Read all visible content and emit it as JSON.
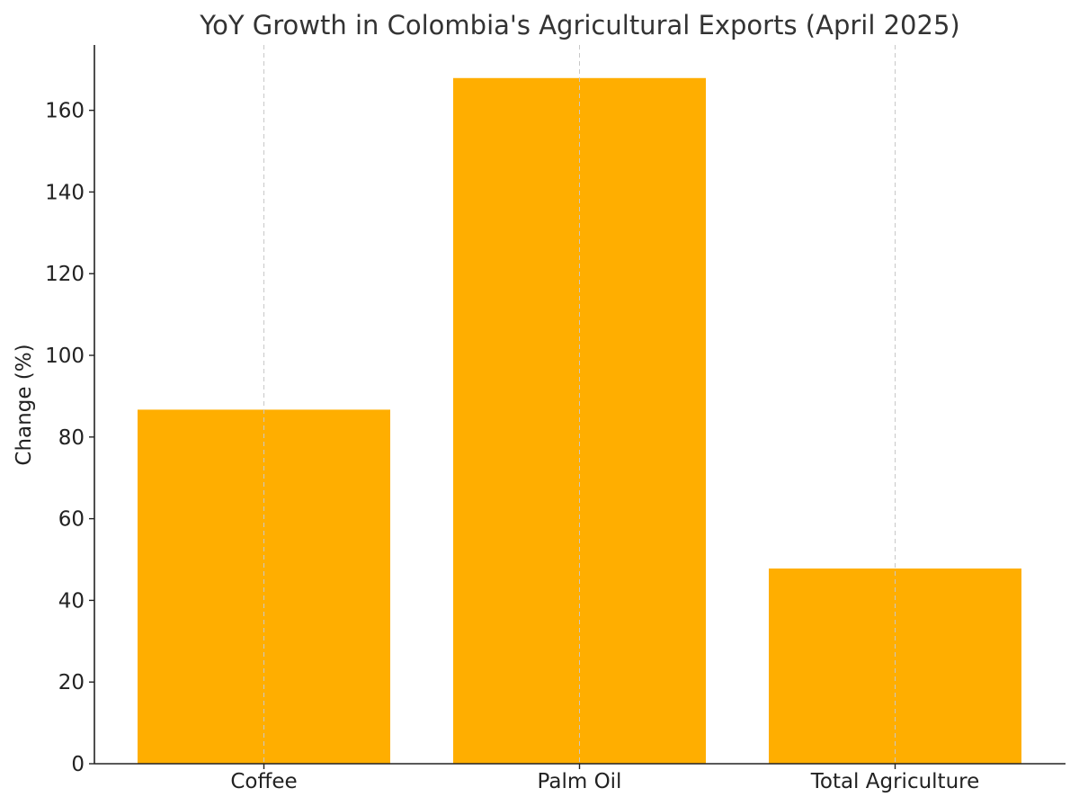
{
  "chart_data": {
    "type": "bar",
    "title": "YoY Growth in Colombia's Agricultural Exports (April 2025)",
    "xlabel": "",
    "ylabel": "Change (%)",
    "categories": [
      "Coffee",
      "Palm Oil",
      "Total Agriculture"
    ],
    "values": [
      86.7,
      167.9,
      47.8
    ],
    "ylim": [
      0,
      176
    ],
    "yticks": [
      0,
      20,
      40,
      60,
      80,
      100,
      120,
      140,
      160
    ],
    "grid": "x-axis only, dashed",
    "bar_color": "#FFAE00"
  }
}
